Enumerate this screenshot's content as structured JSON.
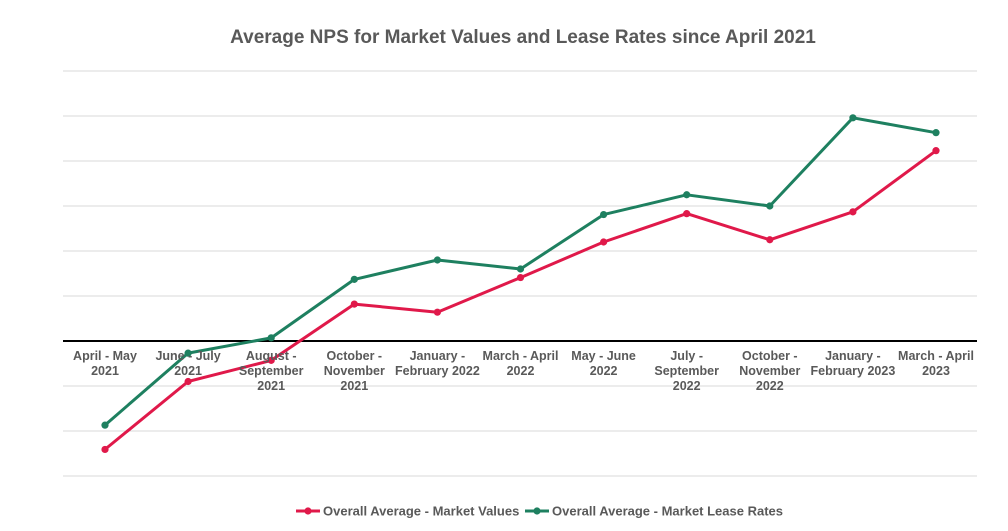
{
  "chart_data": {
    "type": "line",
    "title": "Average NPS for Market Values and Lease Rates since April 2021",
    "xlabel": "",
    "ylabel": "",
    "categories": [
      [
        "April - May",
        "2021"
      ],
      [
        "June - July",
        "2021"
      ],
      [
        "August -",
        "September",
        "2021"
      ],
      [
        "October -",
        "November",
        "2021"
      ],
      [
        "January -",
        "February 2022"
      ],
      [
        "March - April",
        "2022"
      ],
      [
        "May - June",
        "2022"
      ],
      [
        "July -",
        "September",
        "2022"
      ],
      [
        "October -",
        "November",
        "2022"
      ],
      [
        "January -",
        "February 2023"
      ],
      [
        "March - April",
        "2023"
      ]
    ],
    "ylim": [
      -30,
      60
    ],
    "y_gridlines": [
      -30,
      -20,
      -10,
      0,
      10,
      20,
      30,
      40,
      50,
      60
    ],
    "grid": true,
    "legend_position": "bottom",
    "series": [
      {
        "name": "Overall Average - Market Values",
        "color": "#e0194a",
        "values": [
          -24.1,
          -9.0,
          -4.3,
          8.2,
          6.4,
          14.1,
          22.0,
          28.3,
          22.5,
          28.7,
          42.3
        ]
      },
      {
        "name": "Overall Average - Market Lease Rates",
        "color": "#1e8060",
        "values": [
          -18.7,
          -2.7,
          0.7,
          13.7,
          18.0,
          16.0,
          28.1,
          32.5,
          30.0,
          49.6,
          46.3
        ]
      }
    ]
  }
}
